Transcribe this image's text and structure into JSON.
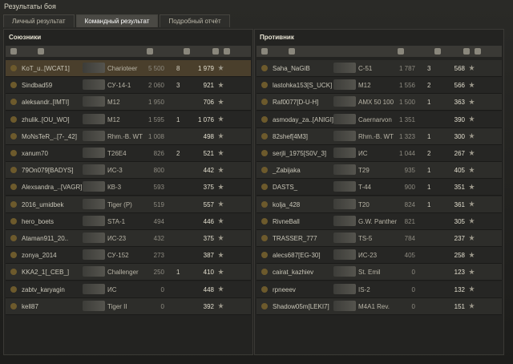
{
  "window": {
    "title": "Результаты боя"
  },
  "tabs": [
    "Личный результат",
    "Командный результат",
    "Подробный отчёт"
  ],
  "active_tab": 1,
  "teams": [
    {
      "title": "Союзники",
      "rows": [
        {
          "player": "KoT_u..[WCAT1]",
          "tank": "Charioteer",
          "damage": "5 500",
          "frags": "8",
          "xp": "1 979"
        },
        {
          "player": "Sindbad59",
          "tank": "СУ-14-1",
          "damage": "2 060",
          "frags": "3",
          "xp": "921"
        },
        {
          "player": "aleksandr..[IMTI]",
          "tank": "M12",
          "damage": "1 950",
          "frags": null,
          "xp": "706"
        },
        {
          "player": "zhulik..[OU_WO]",
          "tank": "M12",
          "damage": "1 595",
          "frags": "1",
          "xp": "1 076"
        },
        {
          "player": "MoNsTeR_..[7-_42]",
          "tank": "Rhm.-B. WT",
          "damage": "1 008",
          "frags": null,
          "xp": "498"
        },
        {
          "player": "xanum70",
          "tank": "T26E4",
          "damage": "826",
          "frags": "2",
          "xp": "521"
        },
        {
          "player": "79On079[BADYS]",
          "tank": "ИС-3",
          "damage": "800",
          "frags": null,
          "xp": "442"
        },
        {
          "player": "Alexsandra_..[VAGR]",
          "tank": "КВ-3",
          "damage": "593",
          "frags": null,
          "xp": "375"
        },
        {
          "player": "2016_umidbek",
          "tank": "Tiger (P)",
          "damage": "519",
          "frags": null,
          "xp": "557"
        },
        {
          "player": "hero_boets",
          "tank": "STA-1",
          "damage": "494",
          "frags": null,
          "xp": "446"
        },
        {
          "player": "Ataman911_20..",
          "tank": "ИС-23",
          "damage": "432",
          "frags": null,
          "xp": "375"
        },
        {
          "player": "zonya_2014",
          "tank": "СУ-152",
          "damage": "273",
          "frags": null,
          "xp": "387"
        },
        {
          "player": "KKA2_1[_CEB_]",
          "tank": "Challenger",
          "damage": "250",
          "frags": "1",
          "xp": "410"
        },
        {
          "player": "zabtv_karyagin",
          "tank": "ИС",
          "damage": "0",
          "frags": null,
          "xp": "448"
        },
        {
          "player": "kell87",
          "tank": "Tiger II",
          "damage": "0",
          "frags": null,
          "xp": "392"
        }
      ]
    },
    {
      "title": "Противник",
      "rows": [
        {
          "player": "Saha_NaGiB",
          "tank": "С-51",
          "damage": "1 787",
          "frags": "3",
          "xp": "568"
        },
        {
          "player": "lastohka153[S_UCK]",
          "tank": "M12",
          "damage": "1 556",
          "frags": "2",
          "xp": "566"
        },
        {
          "player": "Raf0077[D-U-H]",
          "tank": "AMX 50 100",
          "damage": "1 500",
          "frags": "1",
          "xp": "363"
        },
        {
          "player": "asmoday_za..[ANIGI]",
          "tank": "Caernarvon",
          "damage": "1 351",
          "frags": null,
          "xp": "390"
        },
        {
          "player": "82shef[4M3]",
          "tank": "Rhm.-B. WT",
          "damage": "1 323",
          "frags": "1",
          "xp": "300"
        },
        {
          "player": "serjli_1975[S0V_3]",
          "tank": "ИС",
          "damage": "1 044",
          "frags": "2",
          "xp": "267"
        },
        {
          "player": "_Zabijaka",
          "tank": "T29",
          "damage": "935",
          "frags": "1",
          "xp": "405"
        },
        {
          "player": "DASTS_",
          "tank": "T-44",
          "damage": "900",
          "frags": "1",
          "xp": "351"
        },
        {
          "player": "kolja_428",
          "tank": "T20",
          "damage": "824",
          "frags": "1",
          "xp": "361"
        },
        {
          "player": "RivneBall",
          "tank": "G.W. Panther",
          "damage": "821",
          "frags": null,
          "xp": "305"
        },
        {
          "player": "TRASSER_777",
          "tank": "TS-5",
          "damage": "784",
          "frags": null,
          "xp": "237"
        },
        {
          "player": "alecs687[EG-30]",
          "tank": "ИС-23",
          "damage": "405",
          "frags": null,
          "xp": "258"
        },
        {
          "player": "cairat_kazhiev",
          "tank": "St. Emil",
          "damage": "0",
          "frags": null,
          "xp": "123"
        },
        {
          "player": "rpneeev",
          "tank": "IS-2",
          "damage": "0",
          "frags": null,
          "xp": "132"
        },
        {
          "player": "Shadow05m[LEKI7]",
          "tank": "M4A1 Rev.",
          "damage": "0",
          "frags": null,
          "xp": "151"
        }
      ]
    }
  ]
}
